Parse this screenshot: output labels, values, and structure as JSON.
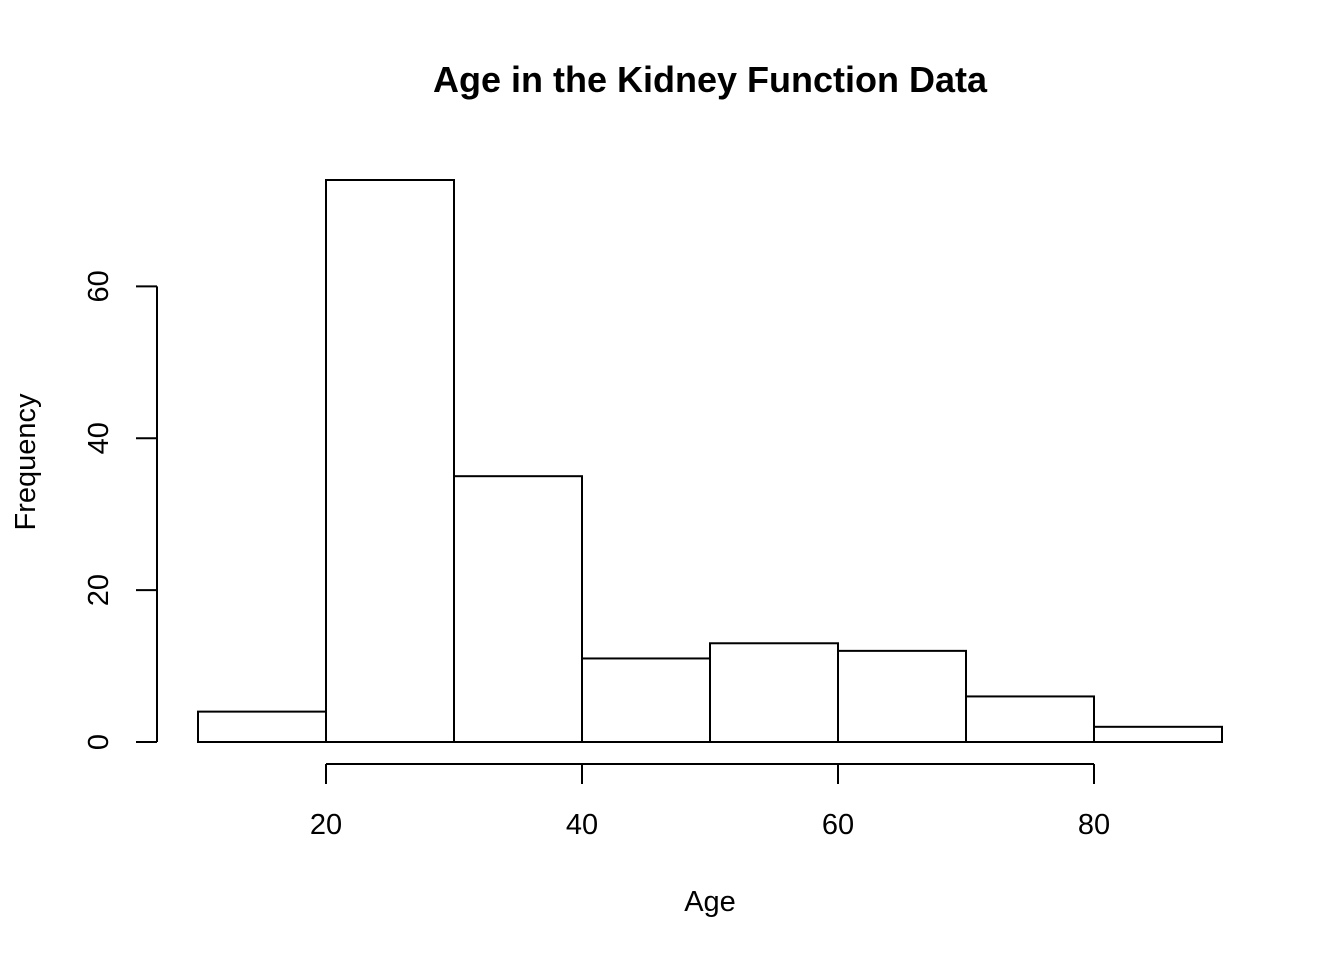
{
  "chart_data": {
    "type": "bar",
    "subtype": "histogram",
    "title": "Age in the Kidney Function Data",
    "xlabel": "Age",
    "ylabel": "Frequency",
    "bin_edges": [
      10,
      20,
      30,
      40,
      50,
      60,
      70,
      80,
      90
    ],
    "values": [
      4,
      74,
      35,
      11,
      13,
      12,
      6,
      2
    ],
    "xlim": [
      10,
      90
    ],
    "ylim": [
      0,
      74
    ],
    "x_ticks": [
      20,
      40,
      60,
      80
    ],
    "x_tick_labels": [
      "20",
      "40",
      "60",
      "80"
    ],
    "y_ticks": [
      0,
      20,
      40,
      60
    ],
    "y_tick_labels": [
      "0",
      "20",
      "40",
      "60"
    ],
    "bar_fill": "#ffffff",
    "bar_stroke": "#000000",
    "grid": false,
    "legend": "none"
  }
}
